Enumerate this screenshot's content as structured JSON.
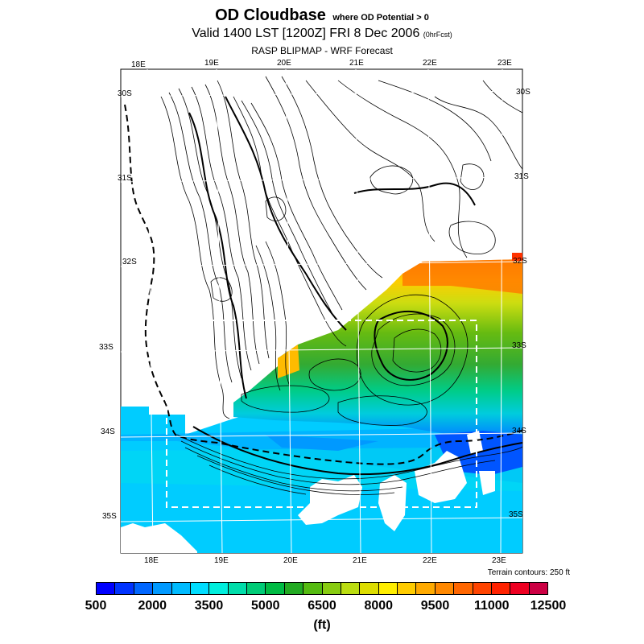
{
  "title": {
    "main": "OD Cloudbase",
    "qualifier": "where OD Potential > 0",
    "valid_prefix": "Valid 1400 LST [1200Z] FRI 8 Dec 2006",
    "forecast_hour": "(0hrFcst)",
    "source": "RASP BLIPMAP - WRF Forecast"
  },
  "map": {
    "lon_labels_top": [
      "18E",
      "19E",
      "20E",
      "21E",
      "22E",
      "23E"
    ],
    "lon_labels_bottom": [
      "18E",
      "19E",
      "20E",
      "21E",
      "22E",
      "23E"
    ],
    "lat_labels_left": [
      "30S",
      "31S",
      "32S",
      "33S",
      "34S",
      "35S"
    ],
    "lat_labels_right": [
      "30S",
      "31S",
      "32S",
      "33S",
      "34S",
      "35S"
    ],
    "terrain_note": "Terrain contours: 250 ft"
  },
  "colorbar": {
    "colors": [
      "#0000ff",
      "#0033ff",
      "#0066ff",
      "#0099ff",
      "#00bbff",
      "#00ddff",
      "#00eedd",
      "#00ddaa",
      "#00cc77",
      "#00bb44",
      "#22aa22",
      "#55bb11",
      "#88cc11",
      "#bbdd11",
      "#dddd00",
      "#ffee00",
      "#ffcc00",
      "#ffaa00",
      "#ff8800",
      "#ff6600",
      "#ff4400",
      "#ff2200",
      "#ee0022",
      "#cc0044"
    ],
    "tick_labels": [
      "500",
      "2000",
      "3500",
      "5000",
      "6500",
      "8000",
      "9500",
      "11000",
      "12500"
    ],
    "unit": "(ft)"
  }
}
